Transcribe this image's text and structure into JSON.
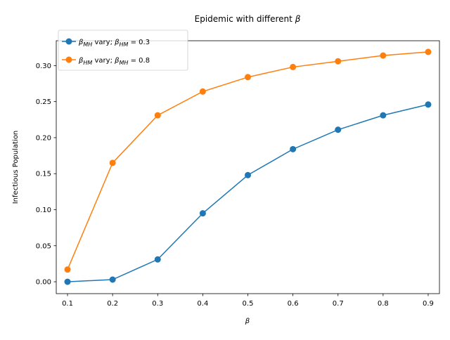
{
  "chart_data": {
    "type": "line",
    "title_text": "Epidemic with different",
    "title_symbol": "β",
    "xlabel": "β",
    "ylabel": "Infectious Population",
    "x": [
      0.1,
      0.2,
      0.3,
      0.4,
      0.5,
      0.6,
      0.7,
      0.8,
      0.9
    ],
    "xlim": [
      0.075,
      0.925
    ],
    "ylim": [
      -0.0165,
      0.3345
    ],
    "x_ticks": [
      0.1,
      0.2,
      0.3,
      0.4,
      0.5,
      0.6,
      0.7,
      0.8,
      0.9
    ],
    "y_ticks": [
      0.0,
      0.05,
      0.1,
      0.15,
      0.2,
      0.25,
      0.3
    ],
    "x_tick_labels": [
      "0.1",
      "0.2",
      "0.3",
      "0.4",
      "0.5",
      "0.6",
      "0.7",
      "0.8",
      "0.9"
    ],
    "y_tick_labels": [
      "0.00",
      "0.05",
      "0.10",
      "0.15",
      "0.20",
      "0.25",
      "0.30"
    ],
    "grid": false,
    "legend_position": "upper-left",
    "series": [
      {
        "name": "β_MH vary; β_HM = 0.3",
        "legend": {
          "sym": "β",
          "sub": "MH",
          "mid": " vary; ",
          "sym2": "β",
          "sub2": "HM",
          "tail": " = 0.3"
        },
        "color": "#1f77b4",
        "values": [
          0.0,
          0.003,
          0.031,
          0.095,
          0.148,
          0.184,
          0.211,
          0.231,
          0.246
        ]
      },
      {
        "name": "β_HM vary; β_MH = 0.8",
        "legend": {
          "sym": "β",
          "sub": "HM",
          "mid": " vary; ",
          "sym2": "β",
          "sub2": "MH",
          "tail": " = 0.8"
        },
        "color": "#ff7f0e",
        "values": [
          0.017,
          0.165,
          0.231,
          0.264,
          0.284,
          0.298,
          0.306,
          0.314,
          0.319
        ]
      }
    ]
  }
}
